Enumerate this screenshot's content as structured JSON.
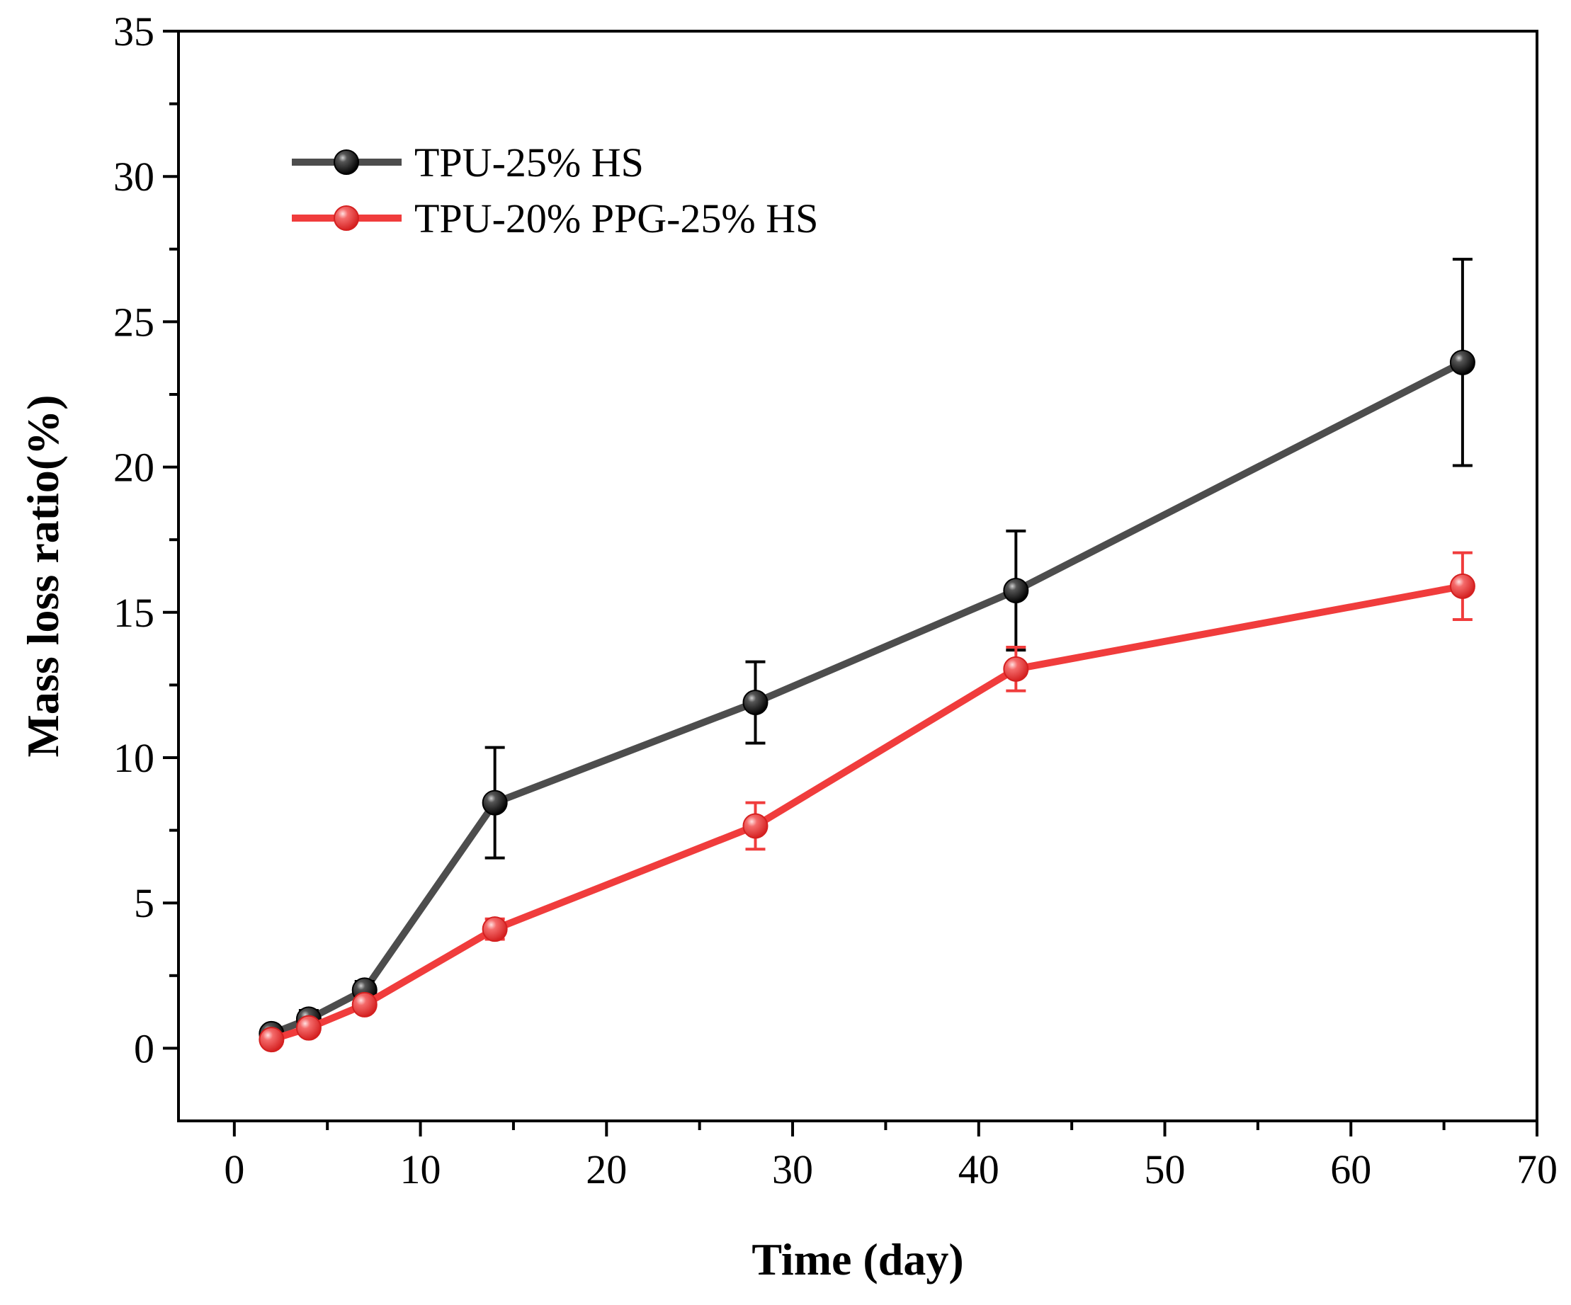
{
  "chart_data": {
    "type": "line",
    "title": "",
    "xlabel": "Time (day)",
    "ylabel": "Mass loss ratio(%)",
    "xlim": [
      -3,
      70
    ],
    "ylim": [
      -2.5,
      35
    ],
    "x_ticks": [
      0,
      10,
      20,
      30,
      40,
      50,
      60,
      70
    ],
    "y_ticks": [
      0,
      5,
      10,
      15,
      20,
      25,
      30,
      35
    ],
    "x_tick_labels": [
      "0",
      "10",
      "20",
      "30",
      "40",
      "50",
      "60",
      "70"
    ],
    "y_tick_labels": [
      "0",
      "5",
      "10",
      "15",
      "20",
      "25",
      "30",
      "35"
    ],
    "legend_position": "top-left",
    "series": [
      {
        "name": "TPU-25% HS",
        "color": "#4d4d4d",
        "marker_color": "#000000",
        "x": [
          2,
          4,
          7,
          14,
          28,
          42,
          66
        ],
        "values": [
          0.5,
          1.0,
          2.0,
          8.45,
          11.9,
          15.75,
          23.6
        ],
        "errors": [
          0.2,
          0.3,
          0.3,
          1.9,
          1.4,
          2.05,
          3.55
        ]
      },
      {
        "name": "TPU-20% PPG-25% HS",
        "color": "#f03c3c",
        "marker_color": "#f03c3c",
        "x": [
          2,
          4,
          7,
          14,
          28,
          42,
          66
        ],
        "values": [
          0.3,
          0.7,
          1.5,
          4.1,
          7.65,
          13.05,
          15.9
        ],
        "errors": [
          0.2,
          0.2,
          0.2,
          0.35,
          0.8,
          0.75,
          1.15
        ]
      }
    ]
  }
}
